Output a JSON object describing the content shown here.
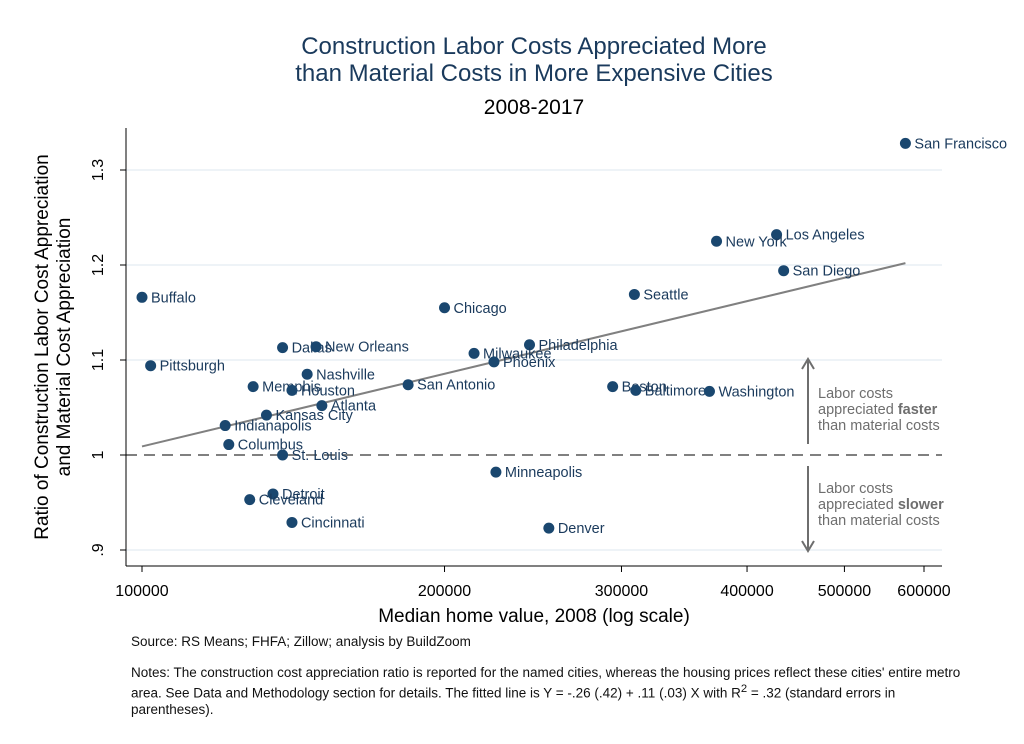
{
  "chart_data": {
    "type": "scatter",
    "title_lines": [
      "Construction Labor Costs Appreciated More",
      "than Material Costs in More Expensive Cities"
    ],
    "subtitle": "2008-2017",
    "xlabel": "Median home value, 2008 (log scale)",
    "ylabel_lines": [
      "Ratio of Construction Labor Cost Appreciation",
      "and Material Cost Appreciation"
    ],
    "x_scale": "log",
    "xlim": [
      99000,
      615000
    ],
    "ylim": [
      0.88,
      1.345
    ],
    "x_ticks": [
      {
        "value": 100000,
        "label": "100000"
      },
      {
        "value": 200000,
        "label": "200000"
      },
      {
        "value": 300000,
        "label": "300000"
      },
      {
        "value": 400000,
        "label": "400000"
      },
      {
        "value": 500000,
        "label": "500000"
      },
      {
        "value": 600000,
        "label": "600000"
      }
    ],
    "y_ticks": [
      {
        "value": 0.9,
        "label": ".9"
      },
      {
        "value": 1.0,
        "label": "1"
      },
      {
        "value": 1.1,
        "label": "1.1"
      },
      {
        "value": 1.2,
        "label": "1.2"
      },
      {
        "value": 1.3,
        "label": "1.3"
      }
    ],
    "grid": true,
    "reference_line": 1.0,
    "fit_line": {
      "x": [
        100000,
        575000
      ],
      "y": [
        1.009,
        1.202
      ]
    },
    "points": [
      {
        "label": "San Francisco",
        "x": 575000,
        "y": 1.328
      },
      {
        "label": "Los Angeles",
        "x": 428000,
        "y": 1.232
      },
      {
        "label": "New York",
        "x": 373000,
        "y": 1.225
      },
      {
        "label": "San Diego",
        "x": 435000,
        "y": 1.194
      },
      {
        "label": "Seattle",
        "x": 309000,
        "y": 1.169
      },
      {
        "label": "Buffalo",
        "x": 100000,
        "y": 1.166
      },
      {
        "label": "Chicago",
        "x": 200000,
        "y": 1.155
      },
      {
        "label": "Dallas",
        "x": 138000,
        "y": 1.113
      },
      {
        "label": "New Orleans",
        "x": 149000,
        "y": 1.114
      },
      {
        "label": "Philadelphia",
        "x": 243000,
        "y": 1.116
      },
      {
        "label": "Milwaukee",
        "x": 214000,
        "y": 1.107
      },
      {
        "label": "Phoenix",
        "x": 224000,
        "y": 1.098
      },
      {
        "label": "Pittsburgh",
        "x": 102000,
        "y": 1.094
      },
      {
        "label": "Nashville",
        "x": 146000,
        "y": 1.085
      },
      {
        "label": "San Antonio",
        "x": 184000,
        "y": 1.074
      },
      {
        "label": "Memphis",
        "x": 129000,
        "y": 1.072
      },
      {
        "label": "Houston",
        "x": 141000,
        "y": 1.068
      },
      {
        "label": "Boston",
        "x": 294000,
        "y": 1.072
      },
      {
        "label": "Baltimore",
        "x": 310000,
        "y": 1.068
      },
      {
        "label": "Washington",
        "x": 367000,
        "y": 1.067
      },
      {
        "label": "Atlanta",
        "x": 151000,
        "y": 1.052
      },
      {
        "label": "Kansas City",
        "x": 133000,
        "y": 1.042
      },
      {
        "label": "Indianapolis",
        "x": 121000,
        "y": 1.031
      },
      {
        "label": "Columbus",
        "x": 122000,
        "y": 1.011
      },
      {
        "label": "St. Louis",
        "x": 138000,
        "y": 1.0
      },
      {
        "label": "Minneapolis",
        "x": 225000,
        "y": 0.982
      },
      {
        "label": "Detroit",
        "x": 135000,
        "y": 0.959
      },
      {
        "label": "Cleveland",
        "x": 128000,
        "y": 0.953
      },
      {
        "label": "Cincinnati",
        "x": 141000,
        "y": 0.929
      },
      {
        "label": "Denver",
        "x": 254000,
        "y": 0.923
      }
    ],
    "annotations": {
      "above": [
        "Labor costs",
        "appreciated ",
        "faster",
        "than material costs"
      ],
      "below": [
        "Labor costs",
        "appreciated ",
        "slower",
        "than material costs"
      ]
    },
    "colors": {
      "marker": "#1a476f",
      "label": "#1a3a5c",
      "title": "#1a3a5c",
      "fit": "#808080",
      "reference": "#808080",
      "grid": "#e3ecf2",
      "annotation": "#6e6e6e"
    }
  },
  "footer": {
    "source": "Source: RS Means; FHFA; Zillow; analysis by BuildZoom",
    "notes_main": "Notes: The construction cost appreciation ratio is reported for the named cities, whereas the housing prices reflect these cities' entire metro area. See Data and Methodology section for details. The fitted line is Y = -.26 (.42) + .11 (.03) X with ",
    "notes_r": "R",
    "notes_sup": "2",
    "notes_end": " = .32 (standard errors in parentheses)."
  }
}
